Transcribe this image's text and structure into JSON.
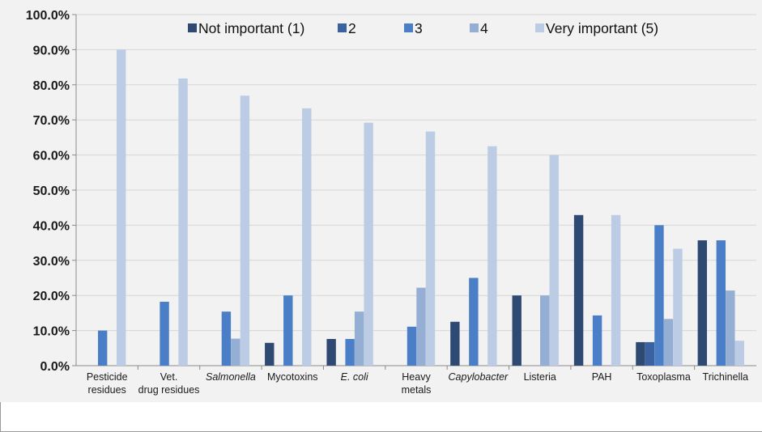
{
  "chart_data": {
    "type": "bar",
    "categories": [
      "Pesticide residues",
      "Vet. drug residues",
      "Salmonella",
      "Mycotoxins",
      "E. coli",
      "Heavy metals",
      "Capylobacter",
      "Listeria",
      "PAH",
      "Toxoplasma",
      "Trichinella"
    ],
    "italic_categories": [
      "Salmonella",
      "E. coli",
      "Capylobacter"
    ],
    "series": [
      {
        "name": "Not important (1)",
        "color": "#2e4a73",
        "values": [
          0,
          0,
          0,
          6.5,
          7.6,
          0,
          12.5,
          20.0,
          42.9,
          6.7,
          35.7
        ]
      },
      {
        "name": "2",
        "color": "#3a62a0",
        "values": [
          0,
          0,
          0,
          0,
          0,
          0,
          0,
          0,
          0,
          6.7,
          0
        ]
      },
      {
        "name": "3",
        "color": "#4a7ec6",
        "values": [
          10.0,
          18.2,
          15.4,
          20.0,
          7.6,
          11.1,
          25.0,
          0,
          14.3,
          40.0,
          35.7
        ]
      },
      {
        "name": "4",
        "color": "#95aed3",
        "values": [
          0,
          0,
          7.7,
          0,
          15.4,
          22.2,
          0,
          20.0,
          0,
          13.3,
          21.4
        ]
      },
      {
        "name": "Very important (5)",
        "color": "#bccce4",
        "values": [
          90.0,
          81.8,
          76.9,
          73.3,
          69.2,
          66.7,
          62.5,
          60.0,
          42.9,
          33.3,
          7.1
        ]
      }
    ],
    "yticks": [
      "0.0%",
      "10.0%",
      "20.0%",
      "30.0%",
      "40.0%",
      "50.0%",
      "60.0%",
      "70.0%",
      "80.0%",
      "90.0%",
      "100.0%"
    ],
    "ylim": [
      0,
      100
    ],
    "ytick_format": "percent",
    "legend": "top-right",
    "grid": true
  }
}
